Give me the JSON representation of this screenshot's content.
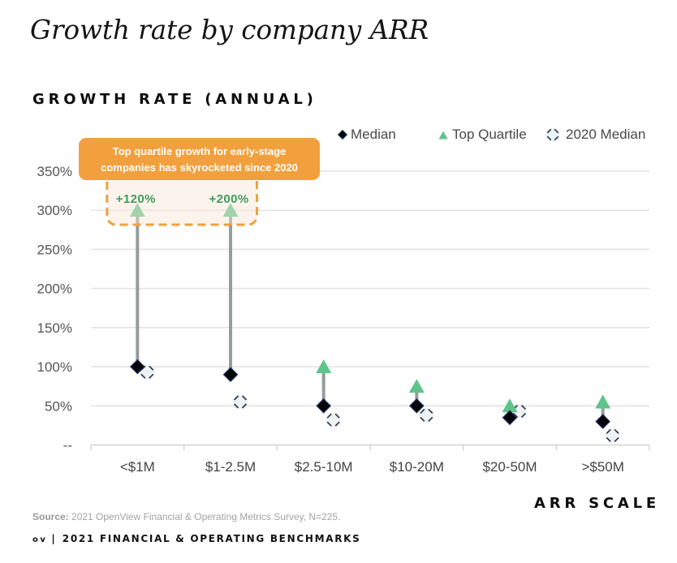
{
  "colors": {
    "median_fill": "#050505",
    "median_stroke": "#1c3166",
    "top_quartile": "#5ec48a",
    "connector": "#959c9c",
    "median_2020_fill": "#eff2f2",
    "median_2020_stroke": "#2f4256",
    "gridline": "#e3e3e3",
    "axis": "#d3d3d3",
    "callout": "#f2a03d",
    "callout_text": "#ffffff",
    "annotation_text": "#3f9a62",
    "highlight_fill": "#f9e6d4"
  },
  "chart_data": {
    "type": "scatter",
    "title": "Growth rate by company ARR",
    "ylabel": "GROWTH RATE (ANNUAL)",
    "xlabel": "ARR SCALE",
    "categories": [
      "<$1M",
      "$1-2.5M",
      "$2.5-10M",
      "$10-20M",
      "$20-50M",
      ">$50M"
    ],
    "series": [
      {
        "name": "Median",
        "marker": "diamond",
        "values": [
          100,
          90,
          50,
          50,
          35,
          30
        ]
      },
      {
        "name": "Top Quartile",
        "marker": "triangle",
        "values": [
          300,
          300,
          100,
          75,
          50,
          55
        ]
      },
      {
        "name": "2020 Median",
        "marker": "dashed-diamond",
        "values": [
          93,
          55,
          32,
          38,
          43,
          12
        ]
      }
    ],
    "ylim": [
      0,
      350
    ],
    "yticks": [
      0,
      50,
      100,
      150,
      200,
      250,
      300,
      350
    ],
    "ytick_labels": [
      "--",
      "50%",
      "100%",
      "150%",
      "200%",
      "250%",
      "300%",
      "350%"
    ],
    "grid": true,
    "legend_position": "top-right",
    "legend": [
      {
        "label": "Median",
        "icon": "diamond-filled-icon"
      },
      {
        "label": "Top Quartile",
        "icon": "triangle-icon"
      },
      {
        "label": "2020 Median",
        "icon": "diamond-dashed-icon"
      }
    ],
    "annotations": [
      {
        "type": "callout",
        "lines": [
          "Top quartile growth for early-stage",
          "companies has skyrocketed since 2020"
        ],
        "categories": [
          "<$1M",
          "$1-2.5M"
        ]
      },
      {
        "type": "label",
        "text": "+120%",
        "category": "<$1M"
      },
      {
        "type": "label",
        "text": "+200%",
        "category": "$1-2.5M"
      }
    ]
  },
  "footer": {
    "source_label": "Source:",
    "source_text": " 2021 OpenView Financial & Operating Metrics Survey, N=225.",
    "brand": "ov",
    "separator": "|",
    "report_title": "2021 FINANCIAL & OPERATING BENCHMARKS"
  }
}
